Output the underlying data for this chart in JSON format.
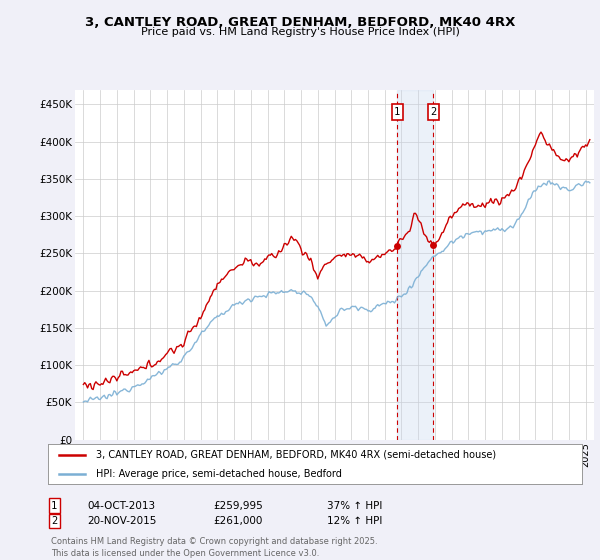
{
  "title1": "3, CANTLEY ROAD, GREAT DENHAM, BEDFORD, MK40 4RX",
  "title2": "Price paid vs. HM Land Registry's House Price Index (HPI)",
  "ylabel_ticks": [
    "£0",
    "£50K",
    "£100K",
    "£150K",
    "£200K",
    "£250K",
    "£300K",
    "£350K",
    "£400K",
    "£450K"
  ],
  "ytick_values": [
    0,
    50000,
    100000,
    150000,
    200000,
    250000,
    300000,
    350000,
    400000,
    450000
  ],
  "ylim": [
    0,
    470000
  ],
  "xlim_start": 1994.5,
  "xlim_end": 2025.5,
  "background_color": "#f0f0f8",
  "plot_bg_color": "#ffffff",
  "red_line_color": "#cc0000",
  "blue_line_color": "#7bafd4",
  "vline1_color": "#cc0000",
  "vline2_color": "#cc0000",
  "shade_color": "#c8d8ee",
  "transaction1_x": 2013.75,
  "transaction2_x": 2015.9,
  "transaction1_price": 259995,
  "transaction2_price": 261000,
  "transaction1_date": "04-OCT-2013",
  "transaction2_date": "20-NOV-2015",
  "transaction1_hpi": "37% ↑ HPI",
  "transaction2_hpi": "12% ↑ HPI",
  "legend_label1": "3, CANTLEY ROAD, GREAT DENHAM, BEDFORD, MK40 4RX (semi-detached house)",
  "legend_label2": "HPI: Average price, semi-detached house, Bedford",
  "footer": "Contains HM Land Registry data © Crown copyright and database right 2025.\nThis data is licensed under the Open Government Licence v3.0."
}
